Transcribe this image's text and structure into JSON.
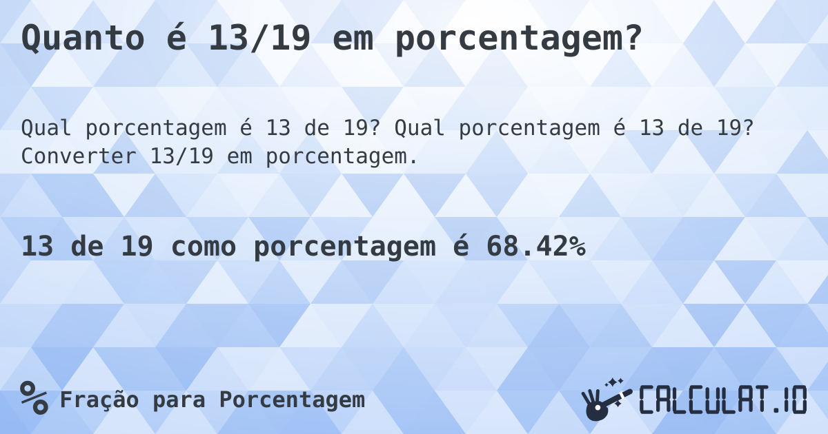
{
  "card": {
    "title": "Quanto é 13/19 em porcentagem?",
    "description": "Qual porcentagem é 13 de 19? Qual porcentagem é 13 de 19? Converter 13/19 em porcentagem.",
    "answer": "13 de 19 como porcentagem é 68.42%"
  },
  "footer": {
    "category": {
      "icon_glyph": "%",
      "label": "Fração para Porcentagem"
    },
    "brand": {
      "name": "CALCULAT.IO",
      "icon": "magic-wand-hand-icon"
    }
  },
  "colors": {
    "text": "#353b42",
    "brand_navy": "#242e40",
    "background_center": "#ffffff",
    "background_edge": "#9abdf5",
    "pattern_blue": "#6d9ce9"
  }
}
